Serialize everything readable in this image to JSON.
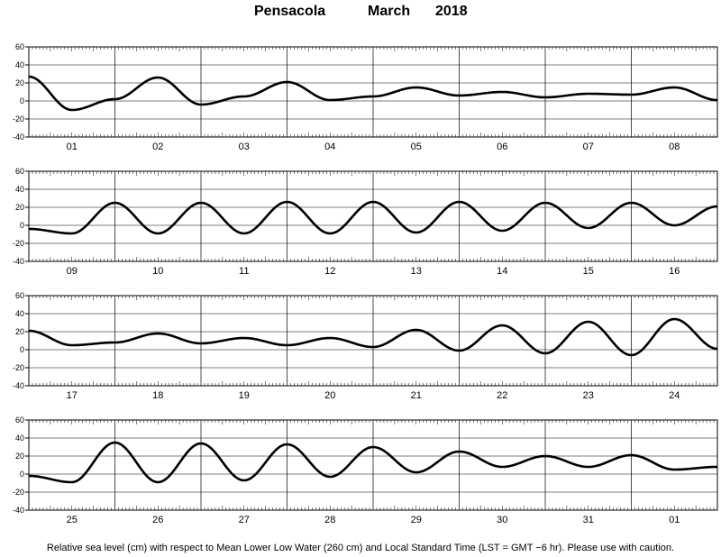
{
  "title": {
    "station": "Pensacola",
    "month": "March",
    "year": "2018"
  },
  "footer": "Relative sea level (cm) with respect to Mean Lower Low Water (260 cm) and Local Standard Time (LST = GMT −6 hr). Please use with caution.",
  "chart_data": [
    {
      "type": "line",
      "days": [
        "01",
        "02",
        "03",
        "04",
        "05",
        "06",
        "07",
        "08"
      ],
      "ylim": [
        -40,
        60
      ],
      "yticks": [
        -40,
        -20,
        0,
        20,
        40,
        60
      ],
      "x": [
        0,
        12,
        24,
        36,
        48,
        60,
        72,
        84,
        96,
        108,
        120,
        132,
        144,
        156,
        168,
        180,
        192
      ],
      "y": [
        27,
        -10,
        2,
        26,
        -4,
        5,
        21,
        1,
        5,
        15,
        6,
        10,
        4,
        8,
        7,
        15,
        1
      ]
    },
    {
      "type": "line",
      "days": [
        "09",
        "10",
        "11",
        "12",
        "13",
        "14",
        "15",
        "16"
      ],
      "ylim": [
        -40,
        60
      ],
      "yticks": [
        -40,
        -20,
        0,
        20,
        40,
        60
      ],
      "x": [
        0,
        12,
        24,
        36,
        48,
        60,
        72,
        84,
        96,
        108,
        120,
        132,
        144,
        156,
        168,
        180,
        192
      ],
      "y": [
        -4,
        -9,
        25,
        -9,
        25,
        -9,
        26,
        -9,
        26,
        -8,
        26,
        -6,
        25,
        -3,
        25,
        0,
        21
      ]
    },
    {
      "type": "line",
      "days": [
        "17",
        "18",
        "19",
        "20",
        "21",
        "22",
        "23",
        "24"
      ],
      "ylim": [
        -40,
        60
      ],
      "yticks": [
        -40,
        -20,
        0,
        20,
        40,
        60
      ],
      "x": [
        0,
        12,
        24,
        36,
        48,
        60,
        72,
        84,
        96,
        108,
        120,
        132,
        144,
        156,
        168,
        180,
        192
      ],
      "y": [
        21,
        5,
        8,
        18,
        7,
        13,
        5,
        13,
        3,
        22,
        -1,
        27,
        -4,
        31,
        -6,
        34,
        1
      ]
    },
    {
      "type": "line",
      "days": [
        "25",
        "26",
        "27",
        "28",
        "29",
        "30",
        "31",
        "01"
      ],
      "ylim": [
        -40,
        60
      ],
      "yticks": [
        -40,
        -20,
        0,
        20,
        40,
        60
      ],
      "x": [
        0,
        12,
        24,
        36,
        48,
        60,
        72,
        84,
        96,
        108,
        120,
        132,
        144,
        156,
        168,
        180,
        192
      ],
      "y": [
        -2,
        -9,
        35,
        -9,
        34,
        -7,
        33,
        -3,
        30,
        2,
        25,
        8,
        20,
        8,
        21,
        5,
        8
      ]
    }
  ]
}
